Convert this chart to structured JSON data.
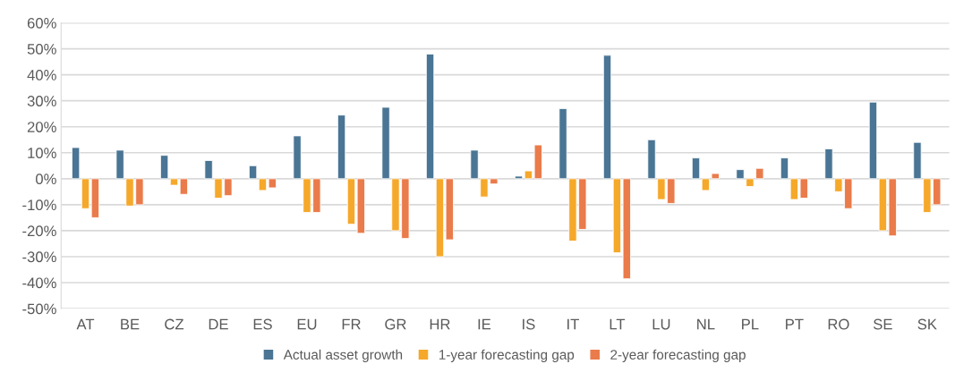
{
  "chart_data": {
    "type": "bar",
    "categories": [
      "AT",
      "BE",
      "CZ",
      "DE",
      "ES",
      "EU",
      "FR",
      "GR",
      "HR",
      "IE",
      "IS",
      "IT",
      "LT",
      "LU",
      "NL",
      "PL",
      "PT",
      "RO",
      "SE",
      "SK"
    ],
    "series": [
      {
        "name": "Actual asset growth",
        "color": "#4a7594",
        "values": [
          12,
          11,
          9,
          7,
          5,
          16.5,
          24.5,
          27.5,
          48,
          11,
          1,
          27,
          47.5,
          15,
          8,
          3.5,
          8,
          11.5,
          29.5,
          14
        ]
      },
      {
        "name": "1-year forecasting gap",
        "color": "#f5a82a",
        "values": [
          -11.5,
          -10.5,
          -2.5,
          -7.5,
          -4.5,
          -13,
          -17.5,
          -20,
          -30,
          -7,
          3,
          -24,
          -28.5,
          -8,
          -4.5,
          -3,
          -8,
          -5,
          -20,
          -13
        ]
      },
      {
        "name": "2-year forecasting gap",
        "color": "#ea7b4b",
        "values": [
          -15,
          -10,
          -6,
          -6.5,
          -3.5,
          -13,
          -21,
          -23,
          -23.5,
          -2,
          13,
          -19.5,
          -38.5,
          -9.5,
          2,
          4,
          -7.5,
          -11.5,
          -22,
          -10
        ]
      }
    ],
    "ylim": [
      -50,
      60
    ],
    "yticks": [
      {
        "value": -50,
        "label": "-50%"
      },
      {
        "value": -40,
        "label": "-40%"
      },
      {
        "value": -30,
        "label": "-30%"
      },
      {
        "value": -20,
        "label": "-20%"
      },
      {
        "value": -10,
        "label": "-10%"
      },
      {
        "value": 0,
        "label": "0%"
      },
      {
        "value": 10,
        "label": "10%"
      },
      {
        "value": 20,
        "label": "20%"
      },
      {
        "value": 30,
        "label": "30%"
      },
      {
        "value": 40,
        "label": "40%"
      },
      {
        "value": 50,
        "label": "50%"
      },
      {
        "value": 60,
        "label": "60%"
      }
    ],
    "grid": "y",
    "legend": "bottom"
  }
}
